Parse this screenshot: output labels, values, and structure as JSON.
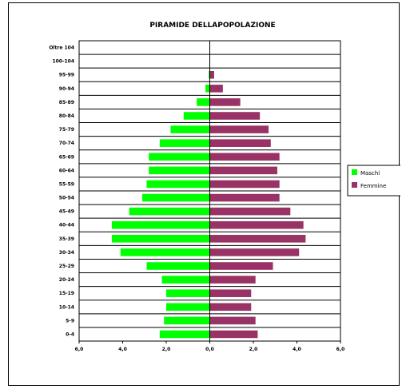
{
  "chart_data": {
    "type": "bar",
    "orientation": "horizontal",
    "title": "PIRAMIDE DELLAPOPOLAZIONE",
    "categories": [
      "0-4",
      "5-9",
      "10-14",
      "15-19",
      "20-24",
      "25-29",
      "30-34",
      "35-39",
      "40-44",
      "45-49",
      "50-54",
      "55-59",
      "60-64",
      "65-69",
      "70-74",
      "75-79",
      "80-84",
      "85-89",
      "90-94",
      "95-99",
      "100-104",
      "Oltre 104"
    ],
    "series": [
      {
        "name": "Maschi",
        "color": "#00ff00",
        "side": "left",
        "values": [
          2.3,
          2.1,
          2.0,
          2.0,
          2.2,
          2.9,
          4.1,
          4.5,
          4.5,
          3.7,
          3.1,
          2.9,
          2.8,
          2.8,
          2.3,
          1.8,
          1.2,
          0.6,
          0.2,
          0.05,
          0.0,
          0.0
        ]
      },
      {
        "name": "Femmine",
        "color": "#993366",
        "side": "right",
        "values": [
          2.2,
          2.1,
          1.9,
          1.9,
          2.1,
          2.9,
          4.1,
          4.4,
          4.3,
          3.7,
          3.2,
          3.2,
          3.1,
          3.2,
          2.8,
          2.7,
          2.3,
          1.4,
          0.6,
          0.2,
          0.0,
          0.0
        ]
      }
    ],
    "x_ticks": [
      "6,0",
      "4,0",
      "2,0",
      "0,0",
      "2,0",
      "4,0",
      "6,0"
    ],
    "xlim": [
      -6,
      6
    ],
    "grid": "horizontal",
    "legend": {
      "position": "right",
      "entries": [
        "Maschi",
        "Femmine"
      ]
    }
  }
}
